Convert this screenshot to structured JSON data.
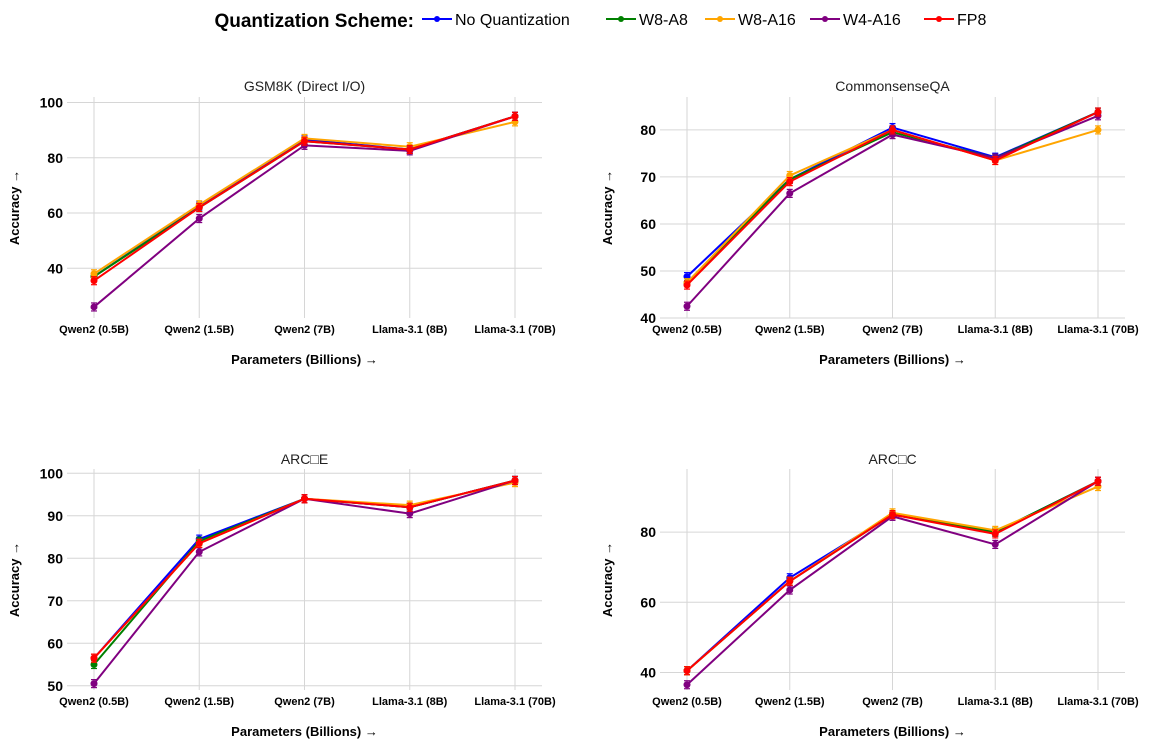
{
  "legend": {
    "title": "Quantization Scheme:",
    "items": [
      {
        "name": "No Quantization",
        "color": "#0000ff"
      },
      {
        "name": "W8-A8",
        "color": "#008000"
      },
      {
        "name": "W8-A16",
        "color": "#ffa500"
      },
      {
        "name": "W4-A16",
        "color": "#800080"
      },
      {
        "name": "FP8",
        "color": "#ff0000"
      }
    ]
  },
  "chart_data": [
    {
      "type": "line",
      "title": "GSM8K (Direct I/O)",
      "xlabel": "Parameters (Billions) →",
      "ylabel": "Accuracy →",
      "categories": [
        "Qwen2 (0.5B)",
        "Qwen2 (1.5B)",
        "Qwen2 (7B)",
        "Llama-3.1 (8B)",
        "Llama-3.1 (70B)"
      ],
      "ylim": [
        22,
        102
      ],
      "yticks": [
        40,
        60,
        80,
        100
      ],
      "grid": true,
      "series": [
        {
          "name": "No Quantization",
          "values": [
            37,
            62.5,
            86.5,
            83,
            95
          ]
        },
        {
          "name": "W8-A8",
          "values": [
            37,
            62,
            86,
            83,
            95
          ]
        },
        {
          "name": "W8-A16",
          "values": [
            38,
            63,
            87,
            84,
            93
          ]
        },
        {
          "name": "W4-A16",
          "values": [
            26,
            58,
            84.5,
            82.5,
            95
          ]
        },
        {
          "name": "FP8",
          "values": [
            35.5,
            62,
            86,
            83,
            95
          ]
        }
      ]
    },
    {
      "type": "line",
      "title": "CommonsenseQA",
      "xlabel": "Parameters (Billions) →",
      "ylabel": "Accuracy →",
      "categories": [
        "Qwen2 (0.5B)",
        "Qwen2 (1.5B)",
        "Qwen2 (7B)",
        "Llama-3.1 (8B)",
        "Llama-3.1 (70B)"
      ],
      "ylim": [
        40,
        87
      ],
      "yticks": [
        40,
        50,
        60,
        70,
        80
      ],
      "grid": true,
      "series": [
        {
          "name": "No Quantization",
          "values": [
            48.8,
            69.5,
            80.5,
            74.2,
            83.8
          ]
        },
        {
          "name": "W8-A8",
          "values": [
            47.5,
            69.5,
            79.5,
            74,
            83.8
          ]
        },
        {
          "name": "W8-A16",
          "values": [
            47.5,
            70.3,
            80,
            73.5,
            80
          ]
        },
        {
          "name": "W4-A16",
          "values": [
            42.5,
            66.5,
            79,
            74,
            83
          ]
        },
        {
          "name": "FP8",
          "values": [
            47,
            69,
            80,
            73.5,
            83.8
          ]
        }
      ]
    },
    {
      "type": "line",
      "title": "ARC□E",
      "xlabel": "Parameters (Billions) →",
      "ylabel": "Accuracy →",
      "categories": [
        "Qwen2 (0.5B)",
        "Qwen2 (1.5B)",
        "Qwen2 (7B)",
        "Llama-3.1 (8B)",
        "Llama-3.1 (70B)"
      ],
      "ylim": [
        49,
        101
      ],
      "yticks": [
        50,
        60,
        70,
        80,
        90,
        100
      ],
      "grid": true,
      "series": [
        {
          "name": "No Quantization",
          "values": [
            56.5,
            84.5,
            94,
            92,
            98.3
          ]
        },
        {
          "name": "W8-A8",
          "values": [
            55,
            84,
            94,
            92,
            98.3
          ]
        },
        {
          "name": "W8-A16",
          "values": [
            56.5,
            83.5,
            94,
            92.5,
            97.8
          ]
        },
        {
          "name": "W4-A16",
          "values": [
            50.5,
            81.5,
            94,
            90.5,
            98.3
          ]
        },
        {
          "name": "FP8",
          "values": [
            56.5,
            83.5,
            94,
            92,
            98.3
          ]
        }
      ]
    },
    {
      "type": "line",
      "title": "ARC□C",
      "xlabel": "Parameters (Billions) →",
      "ylabel": "Accuracy →",
      "categories": [
        "Qwen2 (0.5B)",
        "Qwen2 (1.5B)",
        "Qwen2 (7B)",
        "Llama-3.1 (8B)",
        "Llama-3.1 (70B)"
      ],
      "ylim": [
        35,
        98
      ],
      "yticks": [
        40,
        60,
        80
      ],
      "grid": true,
      "series": [
        {
          "name": "No Quantization",
          "values": [
            40.5,
            67,
            85,
            80,
            94.5
          ]
        },
        {
          "name": "W8-A8",
          "values": [
            40.5,
            66,
            85,
            80,
            94.5
          ]
        },
        {
          "name": "W8-A16",
          "values": [
            40.5,
            66,
            85.5,
            80.5,
            93
          ]
        },
        {
          "name": "W4-A16",
          "values": [
            36.5,
            63.5,
            84.5,
            76.5,
            94.5
          ]
        },
        {
          "name": "FP8",
          "values": [
            40.5,
            66,
            85,
            79.5,
            94.5
          ]
        }
      ]
    }
  ]
}
